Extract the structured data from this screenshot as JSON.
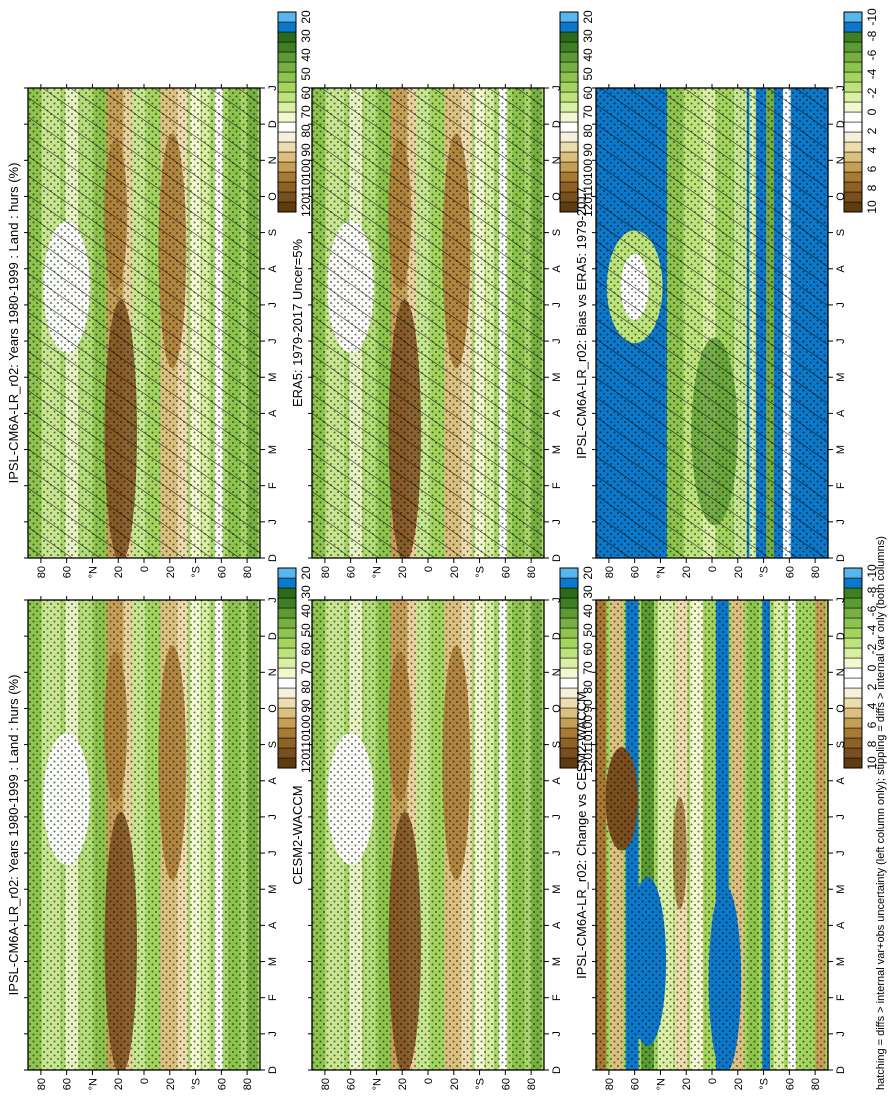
{
  "footer_note": "hatching = diffs > internal var+obs uncertainty (left column only); stippling = diffs > internal var only (both columns)",
  "month_ticks": [
    "D",
    "J",
    "F",
    "M",
    "A",
    "M",
    "J",
    "J",
    "A",
    "S",
    "O",
    "N",
    "D",
    "J"
  ],
  "lat_ticks": [
    "80",
    "60",
    "°N",
    "20",
    "0",
    "20",
    "°S",
    "60",
    "80"
  ],
  "palette_main": [
    "#5e3c0f",
    "#7a4f1f",
    "#8e6224",
    "#a87a34",
    "#c59f56",
    "#dcc07f",
    "#eddcae",
    "#f7f1dc",
    "#fefefe",
    "#f2f8cf",
    "#d9efa3",
    "#bde37c",
    "#a2d45e",
    "#8cc44d",
    "#76b042",
    "#5c9b34",
    "#3f7e25",
    "#2a6a1d",
    "#0b78c9",
    "#56b6ee"
  ],
  "palette_diff": [
    "#5e3c0f",
    "#7a4f1f",
    "#8e6224",
    "#a87a34",
    "#c59f56",
    "#dcc07f",
    "#eddcae",
    "#f7f1dc",
    "#fefefe",
    "#fefefe",
    "#f2f8cf",
    "#d9efa3",
    "#bde37c",
    "#a2d45e",
    "#8cc44d",
    "#76b042",
    "#5c9b34",
    "#3f7e25",
    "#0b78c9",
    "#56b6ee"
  ],
  "chart_data": [
    {
      "type": "heatmap",
      "panel": "top-left",
      "title": "IPSL-CM6A-LR_r02: Years 1980-1999 : Land : hurs (%)",
      "colorbar_ticks": [
        "120",
        "110",
        "100",
        "90",
        "80",
        "70",
        "60",
        "50",
        "40",
        "30",
        "20"
      ],
      "overlays": [
        "hatching",
        "stippling"
      ]
    },
    {
      "type": "heatmap",
      "panel": "top-right",
      "title": "IPSL-CM6A-LR_r02: Years 1980-1999 : Land : hurs (%)",
      "colorbar_ticks": [
        "120",
        "110",
        "100",
        "90",
        "80",
        "70",
        "60",
        "50",
        "40",
        "30",
        "20"
      ],
      "overlays": [
        "stippling"
      ]
    },
    {
      "type": "heatmap",
      "panel": "middle-left",
      "title": "ERA5: 1979-2017 Uncer=5%",
      "colorbar_ticks": [
        "120",
        "110",
        "100",
        "90",
        "80",
        "70",
        "60",
        "50",
        "40",
        "30",
        "20"
      ],
      "overlays": [
        "hatching",
        "stippling"
      ]
    },
    {
      "type": "heatmap",
      "panel": "middle-right",
      "title": "CESM2-WACCM",
      "colorbar_ticks": [
        "120",
        "110",
        "100",
        "90",
        "80",
        "70",
        "60",
        "50",
        "40",
        "30",
        "20"
      ],
      "overlays": [
        "stippling"
      ]
    },
    {
      "type": "heatmap",
      "panel": "bottom-left",
      "title": "IPSL-CM6A-LR_r02: Bias vs ERA5: 1979-2017",
      "colorbar_ticks": [
        "10",
        "8",
        "6",
        "4",
        "2",
        "0",
        "-2",
        "-4",
        "-6",
        "-8",
        "-10"
      ],
      "overlays": [
        "hatching",
        "stippling"
      ]
    },
    {
      "type": "heatmap",
      "panel": "bottom-right",
      "title": "IPSL-CM6A-LR_r02: Change vs CESM2-WACCM",
      "colorbar_ticks": [
        "10",
        "8",
        "6",
        "4",
        "2",
        "0",
        "-2",
        "-4",
        "-6",
        "-8",
        "-10"
      ],
      "overlays": [
        "stippling"
      ]
    }
  ]
}
